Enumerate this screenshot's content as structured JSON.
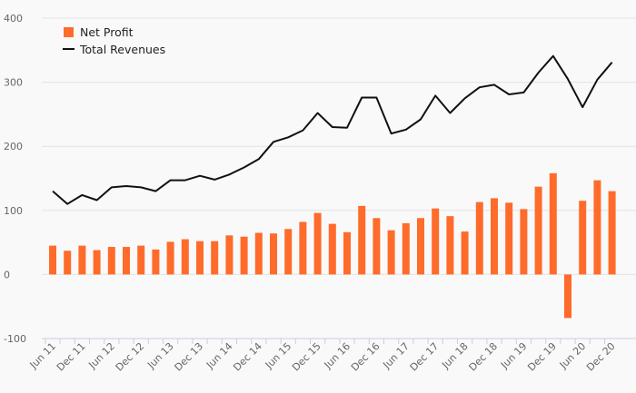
{
  "chart_data": {
    "type": "bar",
    "categories": [
      "Jun 11",
      "Sep 11",
      "Dec 11",
      "Mar 12",
      "Jun 12",
      "Sep 12",
      "Dec 12",
      "Mar 13",
      "Jun 13",
      "Sep 13",
      "Dec 13",
      "Mar 14",
      "Jun 14",
      "Sep 14",
      "Dec 14",
      "Mar 15",
      "Jun 15",
      "Sep 15",
      "Dec 15",
      "Mar 16",
      "Jun 16",
      "Sep 16",
      "Dec 16",
      "Mar 17",
      "Jun 17",
      "Sep 17",
      "Dec 17",
      "Mar 18",
      "Jun 18",
      "Sep 18",
      "Dec 18",
      "Mar 19",
      "Jun 19",
      "Sep 19",
      "Dec 19",
      "Mar 20",
      "Jun 20",
      "Sep 20",
      "Dec 20"
    ],
    "x_tick_labels": [
      "Jun 11",
      "Dec 11",
      "Jun 12",
      "Dec 12",
      "Jun 13",
      "Dec 13",
      "Jun 14",
      "Dec 14",
      "Jun 15",
      "Dec 15",
      "Jun 16",
      "Dec 16",
      "Jun 17",
      "Dec 17",
      "Jun 18",
      "Dec 18",
      "Jun 19",
      "Dec 19",
      "Jun 20",
      "Dec 20"
    ],
    "y_ticks": [
      -100,
      0,
      100,
      200,
      300,
      400
    ],
    "ylim": [
      -100,
      400
    ],
    "grid": true,
    "legend_position": "top-left",
    "series": [
      {
        "name": "Net Profit",
        "type": "bar",
        "color": "#ff6b2b",
        "values": [
          45,
          37,
          45,
          38,
          43,
          43,
          45,
          39,
          51,
          55,
          52,
          52,
          61,
          59,
          65,
          64,
          71,
          82,
          96,
          79,
          66,
          107,
          88,
          69,
          80,
          88,
          103,
          91,
          67,
          113,
          119,
          112,
          102,
          137,
          158,
          -68,
          115,
          147,
          130
        ]
      },
      {
        "name": "Total Revenues",
        "type": "line",
        "color": "#111111",
        "values": [
          130,
          110,
          124,
          116,
          136,
          138,
          136,
          130,
          147,
          147,
          154,
          148,
          156,
          167,
          180,
          207,
          214,
          225,
          252,
          230,
          229,
          276,
          276,
          220,
          226,
          242,
          279,
          252,
          275,
          292,
          296,
          281,
          284,
          315,
          341,
          305,
          261,
          304,
          331
        ]
      }
    ]
  }
}
